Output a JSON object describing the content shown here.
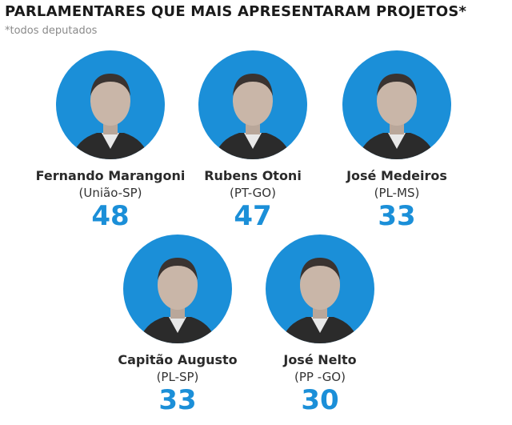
{
  "header": {
    "title": "PARLAMENTARES QUE MAIS APRESENTARAM PROJETOS*",
    "note": "*todos deputados"
  },
  "people": [
    {
      "name": "Fernando Marangoni",
      "party": "(União-SP)",
      "count": 48
    },
    {
      "name": "Rubens Otoni",
      "party": "(PT-GO)",
      "count": 47
    },
    {
      "name": "José Medeiros",
      "party": "(PL-MS)",
      "count": 33
    },
    {
      "name": "Capitão Augusto",
      "party": "(PL-SP)",
      "count": 33
    },
    {
      "name": "José Nelto",
      "party": "(PP -GO)",
      "count": 30
    }
  ]
}
